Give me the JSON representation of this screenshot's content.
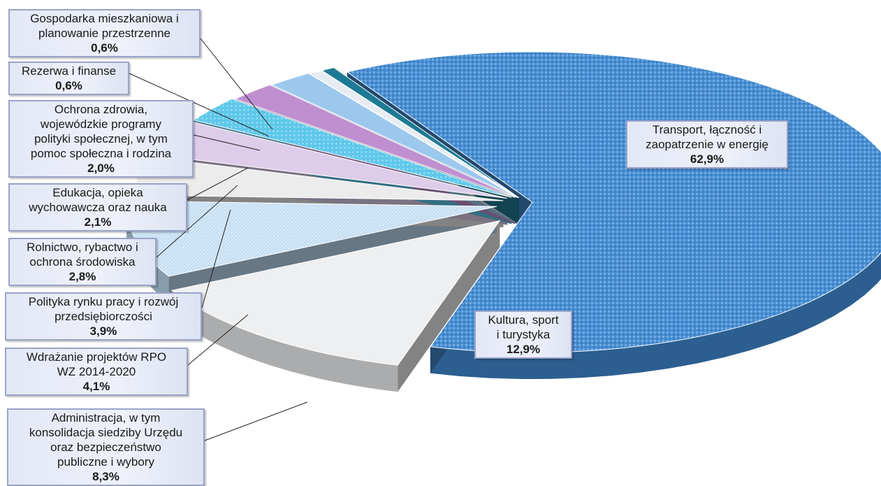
{
  "chart_data": {
    "type": "pie",
    "title": "",
    "slices": [
      {
        "label": "Transport, łączność i zaopatrzenie w energię",
        "value": 62.9,
        "value_label": "62,9%",
        "color": "#3d84c8"
      },
      {
        "label": "Kultura, sport i turystyka",
        "value": 12.9,
        "value_label": "12,9%",
        "color": "#eeeff0"
      },
      {
        "label": "Administracja, w tym konsolidacja siedziby Urzędu oraz bezpieczeństwo publiczne i wybory",
        "value": 8.3,
        "value_label": "8,3%",
        "color": "#bcd8f0"
      },
      {
        "label": "Wdrażanie projektów RPO WZ 2014-2020",
        "value": 4.1,
        "value_label": "4,1%",
        "color": "#ececec"
      },
      {
        "label": "Polityka rynku pracy i rozwój przedsiębiorczości",
        "value": 3.9,
        "value_label": "3,9%",
        "color": "#ddcdea"
      },
      {
        "label": "Rolnictwo, rybactwo i ochrona środowiska",
        "value": 2.8,
        "value_label": "2,8%",
        "color": "#5fc8ea"
      },
      {
        "label": "Edukacja, opieka wychowawcza oraz nauka",
        "value": 2.1,
        "value_label": "2,1%",
        "color": "#c08fd0"
      },
      {
        "label": "Ochrona zdrowia, wojewódzkie programy polityki społecznej, w tym pomoc społeczna i rodzina",
        "value": 2.0,
        "value_label": "2,0%",
        "color": "#9cc8ee"
      },
      {
        "label": "Rezerwa i finanse",
        "value": 0.6,
        "value_label": "0,6%",
        "color": "#e6ecf2"
      },
      {
        "label": "Gospodarka mieszkaniowa i planowanie przestrzenne",
        "value": 0.6,
        "value_label": "0,6%",
        "color": "#1e7a94"
      }
    ]
  },
  "labels": {
    "gospodarka": {
      "l1": "Gospodarka mieszkaniowa i",
      "l2": "planowanie przestrzenne",
      "pct": "0,6%"
    },
    "rezerwa": {
      "l1": "Rezerwa i finanse",
      "pct": "0,6%"
    },
    "ochrona": {
      "l1": "Ochrona zdrowia,",
      "l2": "wojewódzkie programy",
      "l3": "polityki społecznej, w tym",
      "l4": "pomoc społeczna i rodzina",
      "pct": "2,0%"
    },
    "edukacja": {
      "l1": "Edukacja, opieka",
      "l2": "wychowawcza oraz nauka",
      "pct": "2,1%"
    },
    "rolnictwo": {
      "l1": "Rolnictwo, rybactwo i",
      "l2": "ochrona środowiska",
      "pct": "2,8%"
    },
    "polityka": {
      "l1": "Polityka rynku pracy i rozwój",
      "l2": "przedsiębiorczości",
      "pct": "3,9%"
    },
    "wdrazanie": {
      "l1": "Wdrażanie projektów RPO",
      "l2": "WZ 2014-2020",
      "pct": "4,1%"
    },
    "administracja": {
      "l1": "Administracja, w tym",
      "l2": "konsolidacja siedziby Urzędu",
      "l3": "oraz bezpieczeństwo",
      "l4": "publiczne i wybory",
      "pct": "8,3%"
    },
    "transport": {
      "l1": "Transport, łączność i",
      "l2": "zaopatrzenie w energię",
      "pct": "62,9%"
    },
    "kultura": {
      "l1": "Kultura, sport",
      "l2": "i turystyka",
      "pct": "12,9%"
    }
  }
}
